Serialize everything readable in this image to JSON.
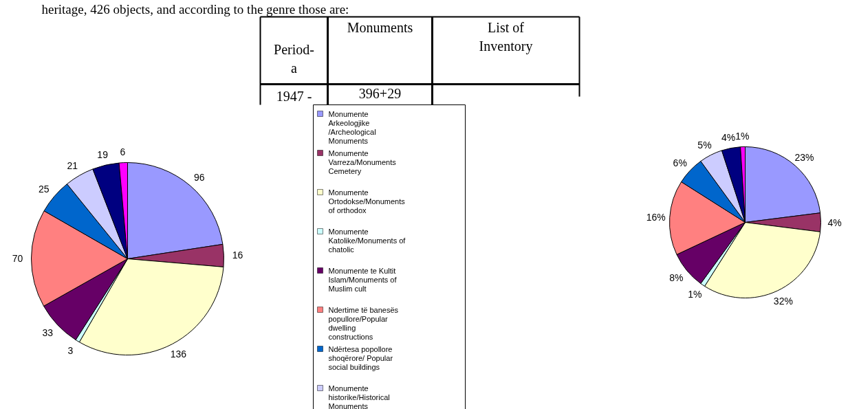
{
  "chart_data": [
    {
      "type": "pie",
      "categories": [
        "Monumente Arkeologjike /Archeological Monuments",
        "Monumente Varreza/Monuments Cemetery",
        "Monumente Ortodokse/Monuments of orthodox",
        "Monumente Katolike/Monuments of chatolic",
        "Monumente te Kultit Islam/Monuments of Muslim cult",
        "Ndertime të banesës popullore/Popular dwelling constructions",
        "Ndërtesa popollore shoqërore/ Popular social buildings",
        "Monumente historike/Historical Monuments",
        null,
        null
      ],
      "values": [
        96,
        16,
        136,
        3,
        33,
        70,
        25,
        21,
        19,
        6
      ],
      "colors": [
        "#9999ff",
        "#993366",
        "#ffffcc",
        "#ccffff",
        "#660066",
        "#ff8080",
        "#0066cc",
        "#ccccff",
        "#000080",
        "#ff00ff"
      ],
      "data_labels": true,
      "legend": "right",
      "annotations": [
        "heritage, 426 objects, and according to the genre those are:",
        "Period- a",
        "Monuments",
        "List of Inventory",
        "1947 -",
        "396+29"
      ]
    },
    {
      "type": "pie",
      "categories": [
        null,
        null,
        null,
        null,
        null,
        null,
        null,
        null,
        null,
        null
      ],
      "values": [
        23,
        4,
        32,
        1,
        8,
        16,
        6,
        5,
        4,
        1
      ],
      "value_labels": [
        "23%",
        "4%",
        "32%",
        "1%",
        "8%",
        "16%",
        "6%",
        "5%",
        "4%",
        "1%"
      ],
      "colors": [
        "#9999ff",
        "#993366",
        "#ffffcc",
        "#ccffff",
        "#660066",
        "#ff8080",
        "#0066cc",
        "#ccccff",
        "#000080",
        "#ff00ff"
      ]
    }
  ]
}
